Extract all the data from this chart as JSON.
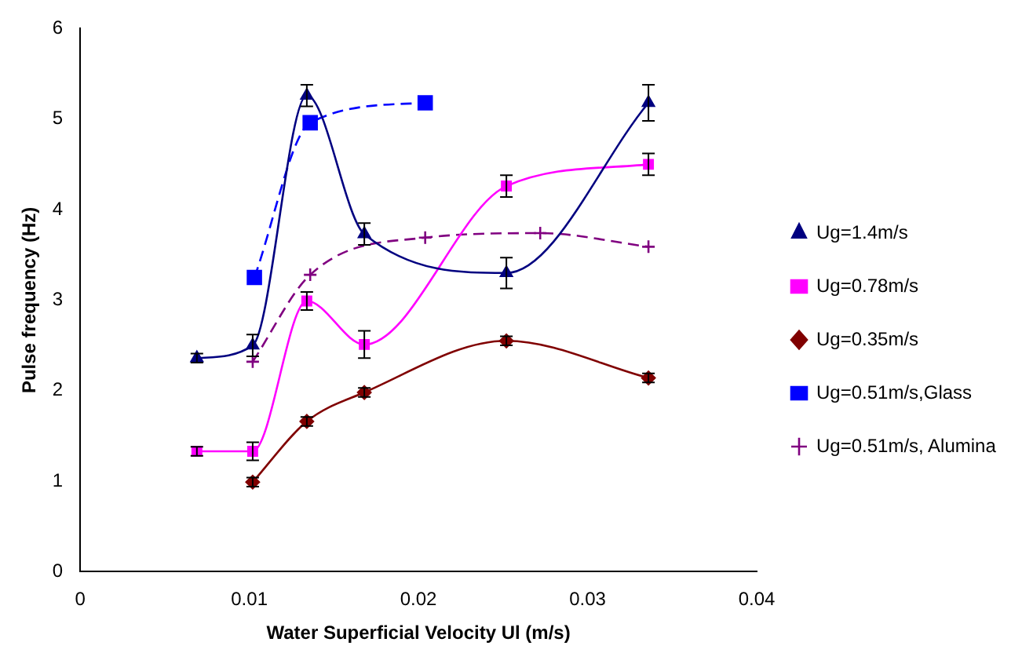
{
  "chart_data": {
    "type": "line",
    "xlabel": "Water Superficial Velocity Ul (m/s)",
    "ylabel": "Pulse frequency (Hz)",
    "xlim": [
      0,
      0.04
    ],
    "xticks": [
      0,
      0.01,
      0.02,
      0.03,
      0.04
    ],
    "ylim": [
      0,
      6
    ],
    "yticks": [
      0,
      1,
      2,
      3,
      4,
      5,
      6
    ],
    "grid": false,
    "legend": "right",
    "series": [
      {
        "name": "Ug=1.4m/s",
        "color": "#000080",
        "marker": "triangle",
        "line_style": "solid",
        "x": [
          0.0069,
          0.0102,
          0.0134,
          0.0168,
          0.0252,
          0.0336
        ],
        "values": [
          2.36,
          2.5,
          5.26,
          3.73,
          3.3,
          5.18
        ],
        "errors": [
          0.05,
          0.12,
          0.12,
          0.12,
          0.17,
          0.2
        ]
      },
      {
        "name": "Ug=0.78m/s",
        "color": "#ff00ff",
        "marker": "square",
        "line_style": "solid",
        "x": [
          0.0069,
          0.0102,
          0.0134,
          0.0168,
          0.0252,
          0.0336
        ],
        "values": [
          1.33,
          1.33,
          2.99,
          2.51,
          4.26,
          4.5
        ],
        "errors": [
          0.05,
          0.1,
          0.1,
          0.15,
          0.12,
          0.12
        ]
      },
      {
        "name": "Ug=0.35m/s",
        "color": "#800000",
        "marker": "diamond",
        "line_style": "solid",
        "x": [
          0.0102,
          0.0134,
          0.0168,
          0.0252,
          0.0336
        ],
        "values": [
          0.99,
          1.66,
          1.98,
          2.55,
          2.14
        ],
        "errors": [
          0.05,
          0.05,
          0.05,
          0.05,
          0.05
        ]
      },
      {
        "name": "Ug=0.51m/s,Glass",
        "color": "#0000ff",
        "marker": "square",
        "line_style": "dashed",
        "x": [
          0.0103,
          0.0136,
          0.0204
        ],
        "values": [
          3.25,
          4.96,
          5.18
        ]
      },
      {
        "name": "Ug=0.51m/s, Alumina",
        "color": "#800080",
        "marker": "cross",
        "line_style": "dashed",
        "x": [
          0.0102,
          0.0136,
          0.0204,
          0.0272,
          0.0336
        ],
        "values": [
          2.32,
          3.28,
          3.69,
          3.74,
          3.59
        ]
      }
    ]
  }
}
